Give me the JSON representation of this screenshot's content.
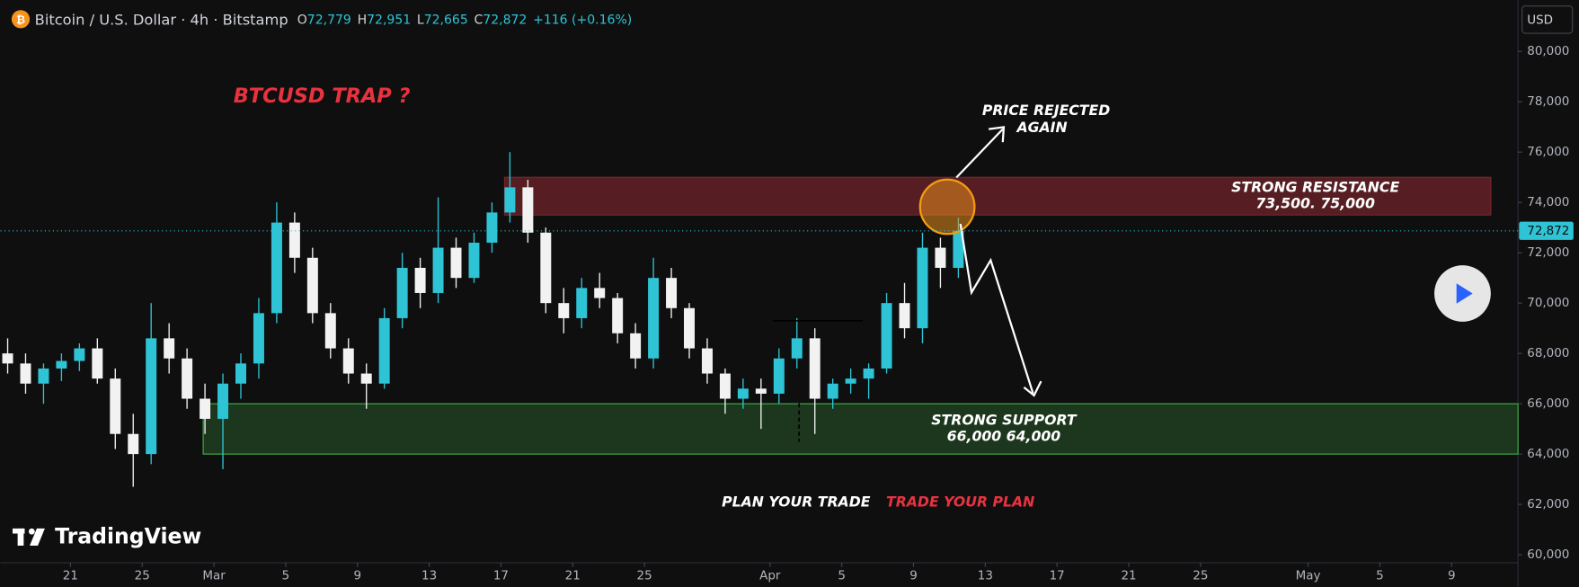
{
  "chart_data": {
    "type": "candlestick",
    "header": {
      "symbol": "Bitcoin / U.S. Dollar · 4h · Bitstamp",
      "o_label": "O",
      "o": "72,779",
      "h_label": "H",
      "h": "72,951",
      "l_label": "L",
      "l": "72,665",
      "c_label": "C",
      "c": "72,872",
      "change": "+116 (+0.16%)"
    },
    "currency": "USD",
    "title": "BTCUSD TRAP ?",
    "x": [
      -4,
      -3,
      -2,
      -1,
      0,
      1,
      2,
      3,
      4,
      5,
      6,
      7,
      8,
      9,
      10,
      11,
      12,
      13,
      14,
      15,
      16,
      17,
      18,
      19,
      20,
      21,
      22,
      23,
      24,
      25,
      26,
      27,
      28,
      29,
      30,
      31,
      32,
      33,
      34,
      35,
      36,
      37,
      38,
      39,
      40,
      41,
      42,
      43,
      44,
      45,
      46,
      47,
      48,
      49
    ],
    "open": [
      68000,
      67600,
      66800,
      67400,
      67700,
      68200,
      67000,
      64800,
      64000,
      68600,
      67800,
      66200,
      65400,
      66800,
      67600,
      69600,
      73200,
      71800,
      69600,
      68200,
      67200,
      66800,
      69400,
      71400,
      70400,
      72200,
      71000,
      72400,
      73600,
      74600,
      72800,
      70000,
      69400,
      70600,
      70200,
      68800,
      67800,
      71000,
      69800,
      68200,
      67200,
      66200,
      66600,
      66400,
      67800,
      68600,
      66200,
      66800,
      67000,
      67400,
      70000,
      69000,
      72200,
      71400
    ],
    "high": [
      68600,
      68000,
      67600,
      68000,
      68400,
      68600,
      67400,
      65600,
      70000,
      69200,
      68200,
      66800,
      67200,
      68000,
      70200,
      74000,
      73600,
      72200,
      70000,
      68600,
      67600,
      69800,
      72000,
      71800,
      74200,
      72600,
      72800,
      74000,
      76000,
      74900,
      73000,
      70600,
      71000,
      71200,
      70400,
      69200,
      71800,
      71400,
      70000,
      68600,
      67400,
      67000,
      67000,
      68200,
      69400,
      69000,
      67000,
      67400,
      67600,
      70400,
      70800,
      72800,
      72600,
      73400
    ],
    "low": [
      67200,
      66400,
      66000,
      66900,
      67300,
      66800,
      64200,
      62700,
      63600,
      67200,
      65800,
      64800,
      63400,
      66200,
      67000,
      69200,
      71200,
      69200,
      67800,
      66800,
      65800,
      66600,
      69000,
      69800,
      70000,
      70600,
      70800,
      72000,
      73200,
      72400,
      69600,
      68800,
      69000,
      69800,
      68400,
      67400,
      67400,
      69400,
      67800,
      66800,
      65600,
      65800,
      65000,
      66000,
      67400,
      64800,
      65800,
      66400,
      66200,
      67200,
      68600,
      68400,
      70600,
      71000
    ],
    "close": [
      67600,
      66800,
      67400,
      67700,
      68200,
      67000,
      64800,
      64000,
      68600,
      67800,
      66200,
      65400,
      66800,
      67600,
      69600,
      73200,
      71800,
      69600,
      68200,
      67200,
      66800,
      69400,
      71400,
      70400,
      72200,
      71000,
      72400,
      73600,
      74600,
      72800,
      70000,
      69400,
      70600,
      70200,
      68800,
      67800,
      71000,
      69800,
      68200,
      67200,
      66200,
      66600,
      66400,
      67800,
      68600,
      66200,
      66800,
      67000,
      67400,
      70000,
      69000,
      72200,
      71400,
      72872
    ],
    "up_color": "#2ec4d6",
    "down_color": "#f2f2f2",
    "xlim": [
      -3.9,
      80.7
    ],
    "xticks": [
      {
        "value": 0,
        "label": "21"
      },
      {
        "value": 4,
        "label": "25"
      },
      {
        "value": 8,
        "label": "Mar"
      },
      {
        "value": 12,
        "label": "5"
      },
      {
        "value": 16,
        "label": "9"
      },
      {
        "value": 20,
        "label": "13"
      },
      {
        "value": 24,
        "label": "17"
      },
      {
        "value": 28,
        "label": "21"
      },
      {
        "value": 32,
        "label": "25"
      },
      {
        "value": 39,
        "label": "Apr"
      },
      {
        "value": 43,
        "label": "5"
      },
      {
        "value": 47,
        "label": "9"
      },
      {
        "value": 51,
        "label": "13"
      },
      {
        "value": 55,
        "label": "17"
      },
      {
        "value": 59,
        "label": "21"
      },
      {
        "value": 63,
        "label": "25"
      },
      {
        "value": 69,
        "label": "May"
      },
      {
        "value": 73,
        "label": "5"
      },
      {
        "value": 77,
        "label": "9"
      }
    ],
    "ylim": [
      60000,
      80000
    ],
    "yticks": [
      {
        "value": 60000,
        "label": "60,000"
      },
      {
        "value": 62000,
        "label": "62,000"
      },
      {
        "value": 64000,
        "label": "64,000"
      },
      {
        "value": 66000,
        "label": "66,000"
      },
      {
        "value": 68000,
        "label": "68,000"
      },
      {
        "value": 70000,
        "label": "70,000"
      },
      {
        "value": 72000,
        "label": "72,000"
      },
      {
        "value": 74000,
        "label": "74,000"
      },
      {
        "value": 76000,
        "label": "76,000"
      },
      {
        "value": 78000,
        "label": "78,000"
      },
      {
        "value": 80000,
        "label": "80,000"
      }
    ],
    "last_price": {
      "value": 72872,
      "label": "72,872"
    },
    "zones": [
      {
        "lines": [
          "STRONG RESISTANCE",
          "73,500. 75,000"
        ],
        "low": 73500,
        "high": 75000,
        "from": 24.2,
        "color": "#5a1f24"
      },
      {
        "lines": [
          "STRONG  SUPPORT",
          "66,000 64,000"
        ],
        "low": 64000,
        "high": 66000,
        "from": 7.4,
        "color": "#1d3a1e"
      }
    ],
    "annotation": [
      "PRICE  REJECTED",
      "AGAIN"
    ],
    "footer_left": "PLAN YOUR TRADE",
    "footer_right": "TRADE  YOUR PLAN",
    "brand": "TradingView"
  }
}
